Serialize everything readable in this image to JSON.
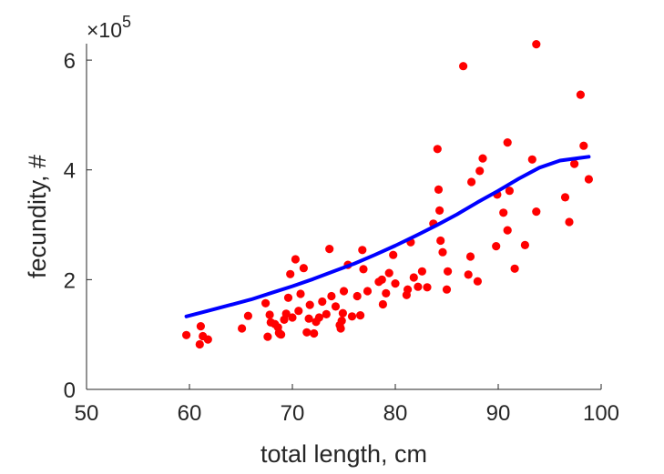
{
  "chart_data": {
    "type": "scatter",
    "xlabel": "total length, cm",
    "ylabel": "fecundity, #",
    "y_multiplier_label": {
      "prefix": "×10",
      "exponent": "5"
    },
    "xlim": [
      50,
      100
    ],
    "ylim": [
      0,
      6.3
    ],
    "x_ticks": [
      {
        "value": 50,
        "label": "50"
      },
      {
        "value": 60,
        "label": "60"
      },
      {
        "value": 70,
        "label": "70"
      },
      {
        "value": 80,
        "label": "80"
      },
      {
        "value": 90,
        "label": "90"
      },
      {
        "value": 100,
        "label": "100"
      }
    ],
    "y_ticks": [
      {
        "value": 0,
        "label": "0"
      },
      {
        "value": 2,
        "label": "2"
      },
      {
        "value": 4,
        "label": "4"
      },
      {
        "value": 6,
        "label": "6"
      }
    ],
    "grid": false,
    "series": [
      {
        "kind": "scatter",
        "color": "#ff0000",
        "points": [
          [
            59.7,
            0.99
          ],
          [
            61.0,
            0.82
          ],
          [
            61.1,
            1.15
          ],
          [
            61.3,
            0.97
          ],
          [
            61.8,
            0.91
          ],
          [
            65.1,
            1.11
          ],
          [
            65.7,
            1.34
          ],
          [
            67.4,
            1.57
          ],
          [
            67.6,
            0.96
          ],
          [
            67.8,
            1.36
          ],
          [
            67.9,
            1.22
          ],
          [
            68.3,
            1.19
          ],
          [
            68.6,
            1.13
          ],
          [
            68.7,
            1.03
          ],
          [
            68.8,
            1.01
          ],
          [
            68.9,
            1.0
          ],
          [
            69.2,
            1.27
          ],
          [
            69.4,
            1.38
          ],
          [
            69.6,
            1.67
          ],
          [
            69.8,
            2.1
          ],
          [
            70.0,
            1.31
          ],
          [
            70.3,
            2.37
          ],
          [
            70.6,
            1.43
          ],
          [
            70.8,
            1.74
          ],
          [
            71.1,
            2.21
          ],
          [
            71.4,
            1.04
          ],
          [
            71.6,
            1.29
          ],
          [
            71.7,
            1.54
          ],
          [
            72.1,
            1.02
          ],
          [
            72.3,
            1.23
          ],
          [
            72.6,
            1.31
          ],
          [
            72.9,
            1.6
          ],
          [
            73.3,
            1.37
          ],
          [
            73.6,
            2.56
          ],
          [
            73.8,
            1.7
          ],
          [
            74.2,
            1.51
          ],
          [
            74.6,
            1.17
          ],
          [
            74.7,
            1.11
          ],
          [
            74.8,
            1.25
          ],
          [
            74.9,
            1.39
          ],
          [
            75.0,
            1.79
          ],
          [
            75.4,
            2.27
          ],
          [
            75.8,
            1.33
          ],
          [
            76.3,
            1.7
          ],
          [
            76.6,
            1.35
          ],
          [
            76.8,
            2.54
          ],
          [
            76.9,
            2.19
          ],
          [
            77.3,
            1.79
          ],
          [
            78.4,
            1.96
          ],
          [
            78.7,
            2.0
          ],
          [
            78.8,
            1.55
          ],
          [
            79.1,
            1.75
          ],
          [
            79.4,
            2.12
          ],
          [
            79.8,
            2.45
          ],
          [
            80.0,
            1.93
          ],
          [
            81.1,
            1.72
          ],
          [
            81.2,
            1.82
          ],
          [
            81.5,
            2.68
          ],
          [
            81.8,
            2.04
          ],
          [
            82.2,
            1.87
          ],
          [
            82.6,
            2.15
          ],
          [
            83.1,
            1.86
          ],
          [
            83.7,
            3.02
          ],
          [
            84.1,
            4.38
          ],
          [
            84.2,
            3.64
          ],
          [
            84.3,
            3.26
          ],
          [
            84.4,
            2.71
          ],
          [
            84.6,
            2.5
          ],
          [
            85.0,
            1.82
          ],
          [
            85.1,
            2.15
          ],
          [
            86.6,
            5.89
          ],
          [
            87.1,
            2.09
          ],
          [
            87.3,
            2.42
          ],
          [
            87.4,
            3.78
          ],
          [
            88.0,
            1.97
          ],
          [
            88.2,
            3.98
          ],
          [
            88.5,
            4.21
          ],
          [
            89.8,
            2.61
          ],
          [
            89.9,
            3.55
          ],
          [
            90.5,
            3.22
          ],
          [
            90.9,
            2.9
          ],
          [
            90.9,
            4.5
          ],
          [
            91.1,
            3.62
          ],
          [
            91.6,
            2.2
          ],
          [
            92.6,
            2.63
          ],
          [
            93.3,
            4.19
          ],
          [
            93.7,
            3.24
          ],
          [
            93.7,
            6.29
          ],
          [
            96.5,
            3.5
          ],
          [
            96.9,
            3.05
          ],
          [
            97.4,
            4.11
          ],
          [
            98.0,
            5.37
          ],
          [
            98.3,
            4.44
          ],
          [
            98.8,
            3.83
          ]
        ]
      },
      {
        "kind": "line",
        "color": "#0000ff",
        "points": [
          [
            59.7,
            1.33
          ],
          [
            62,
            1.44
          ],
          [
            64,
            1.54
          ],
          [
            66,
            1.64
          ],
          [
            68,
            1.76
          ],
          [
            70,
            1.88
          ],
          [
            72,
            2.01
          ],
          [
            74,
            2.15
          ],
          [
            76,
            2.29
          ],
          [
            78,
            2.45
          ],
          [
            80,
            2.62
          ],
          [
            82,
            2.8
          ],
          [
            84,
            2.99
          ],
          [
            86,
            3.19
          ],
          [
            88,
            3.41
          ],
          [
            90,
            3.62
          ],
          [
            92,
            3.84
          ],
          [
            94,
            4.04
          ],
          [
            96,
            4.17
          ],
          [
            98.8,
            4.24
          ]
        ]
      }
    ]
  }
}
